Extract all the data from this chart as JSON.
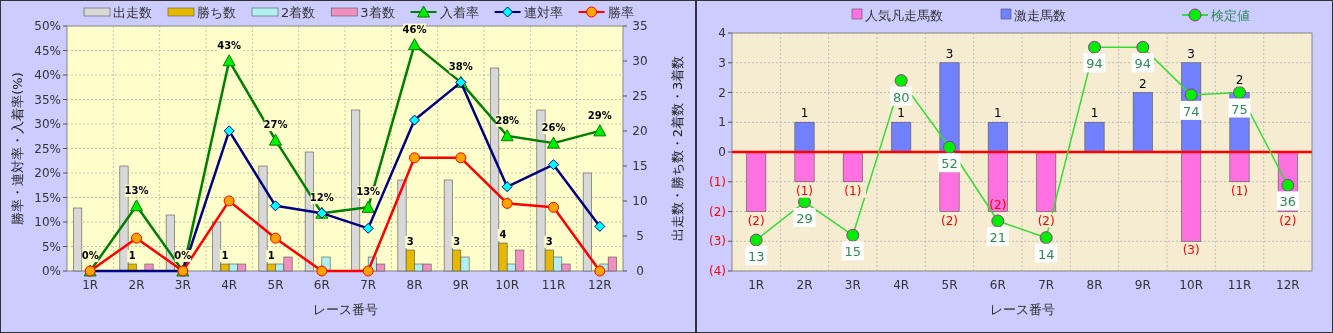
{
  "chart_data": [
    {
      "type": "bar",
      "categories": [
        "1R",
        "2R",
        "3R",
        "4R",
        "5R",
        "6R",
        "7R",
        "8R",
        "9R",
        "10R",
        "11R",
        "12R"
      ],
      "xlabel": "レース番号",
      "ylabel": "勝率・連対率・入着率(%)",
      "y2label": "出走数・勝ち数・2着数・3着数",
      "ylim": [
        0,
        50
      ],
      "yticks": [
        {
          "value": 0,
          "label": "0%"
        },
        {
          "value": 5,
          "label": "5%"
        },
        {
          "value": 10,
          "label": "10%"
        },
        {
          "value": 15,
          "label": "15%"
        },
        {
          "value": 20,
          "label": "20%"
        },
        {
          "value": 25,
          "label": "25%"
        },
        {
          "value": 30,
          "label": "30%"
        },
        {
          "value": 35,
          "label": "35%"
        },
        {
          "value": 40,
          "label": "40%"
        },
        {
          "value": 45,
          "label": "45%"
        },
        {
          "value": 50,
          "label": "50%"
        }
      ],
      "y2lim": [
        0,
        35
      ],
      "y2ticks": [
        0,
        5,
        10,
        15,
        20,
        25,
        30,
        35
      ],
      "grid": true,
      "legend": "top",
      "series": [
        {
          "name": "出走数",
          "type": "bar",
          "axis": "y2",
          "color": "#d8d8d8",
          "values": [
            9,
            15,
            8,
            7,
            15,
            17,
            23,
            13,
            13,
            29,
            23,
            14
          ]
        },
        {
          "name": "勝ち数",
          "type": "bar",
          "axis": "y2",
          "color": "#e6b800",
          "values": [
            0,
            1,
            0,
            1,
            1,
            0,
            0,
            3,
            3,
            4,
            3,
            0
          ],
          "value_labels": [
            null,
            "1",
            null,
            "1",
            "1",
            null,
            null,
            "3",
            "3",
            "4",
            "3",
            null
          ]
        },
        {
          "name": "2着数",
          "type": "bar",
          "axis": "y2",
          "color": "#b0f0f0",
          "values": [
            0,
            0,
            0,
            1,
            1,
            2,
            2,
            1,
            2,
            1,
            2,
            1
          ]
        },
        {
          "name": "3着数",
          "type": "bar",
          "axis": "y2",
          "color": "#f090c0",
          "values": [
            0,
            1,
            0,
            1,
            2,
            0,
            1,
            1,
            0,
            3,
            1,
            2
          ]
        },
        {
          "name": "入着率",
          "type": "line",
          "color": "#008000",
          "marker": "triangle",
          "values": [
            0,
            13.3,
            0,
            42.9,
            26.7,
            11.8,
            13.0,
            46.2,
            38.5,
            27.6,
            26.1,
            28.6
          ],
          "value_labels": [
            "0%",
            "13%",
            "0%",
            "43%",
            "27%",
            "12%",
            "13%",
            "46%",
            "38%",
            "28%",
            "26%",
            "29%"
          ]
        },
        {
          "name": "連対率",
          "type": "line",
          "color": "#000080",
          "marker": "diamond",
          "values": [
            0,
            null,
            0,
            28.6,
            13.3,
            11.8,
            8.7,
            30.8,
            38.5,
            17.2,
            21.7,
            9.1
          ]
        },
        {
          "name": "勝率",
          "type": "line",
          "color": "#ff0000",
          "marker": "circle",
          "values": [
            0,
            6.7,
            0,
            14.3,
            6.7,
            0,
            0,
            23.1,
            23.1,
            13.8,
            13.0,
            0
          ]
        }
      ]
    },
    {
      "type": "bar",
      "stacked": true,
      "categories": [
        "1R",
        "2R",
        "3R",
        "4R",
        "5R",
        "6R",
        "7R",
        "8R",
        "9R",
        "10R",
        "11R",
        "12R"
      ],
      "xlabel": "レース番号",
      "ylim": [
        -4,
        4
      ],
      "yticks": [
        {
          "value": -4,
          "label": "(4)"
        },
        {
          "value": -3,
          "label": "(3)"
        },
        {
          "value": -2,
          "label": "(2)"
        },
        {
          "value": -1,
          "label": "(1)"
        },
        0,
        1,
        2,
        3,
        4
      ],
      "y2lim": [
        0,
        100
      ],
      "grid": true,
      "legend": "top",
      "ref_lines": [
        {
          "axis": "y",
          "value": 0,
          "color": "#ff0000"
        }
      ],
      "series": [
        {
          "name": "人気凡走馬数",
          "color": "#ff70e0",
          "values": [
            -2,
            -1,
            -1,
            0,
            -2,
            -2,
            -2,
            0,
            0,
            -3,
            -1,
            -2
          ],
          "value_labels": [
            "(2)",
            "(1)",
            "(1)",
            null,
            "(2)",
            "(2)",
            "(2)",
            null,
            null,
            "(3)",
            "(1)",
            "(2)"
          ]
        },
        {
          "name": "激走馬数",
          "color": "#7080ff",
          "values": [
            0,
            1,
            0,
            1,
            3,
            1,
            0,
            1,
            2,
            3,
            2,
            0
          ],
          "value_labels": [
            null,
            "1",
            null,
            "1",
            "3",
            "1",
            null,
            "1",
            "2",
            "3",
            "2",
            null
          ]
        },
        {
          "name": "検定値",
          "type": "line",
          "axis": "y2",
          "color": "#33dd33",
          "marker": "circle",
          "values": [
            13,
            29,
            15,
            80,
            52,
            21,
            14,
            94,
            94,
            74,
            75,
            36
          ],
          "value_labels": [
            "13",
            "29",
            "15",
            "80",
            "52",
            "21",
            "14",
            "94",
            "94",
            "74",
            "75",
            "36"
          ]
        }
      ]
    }
  ]
}
